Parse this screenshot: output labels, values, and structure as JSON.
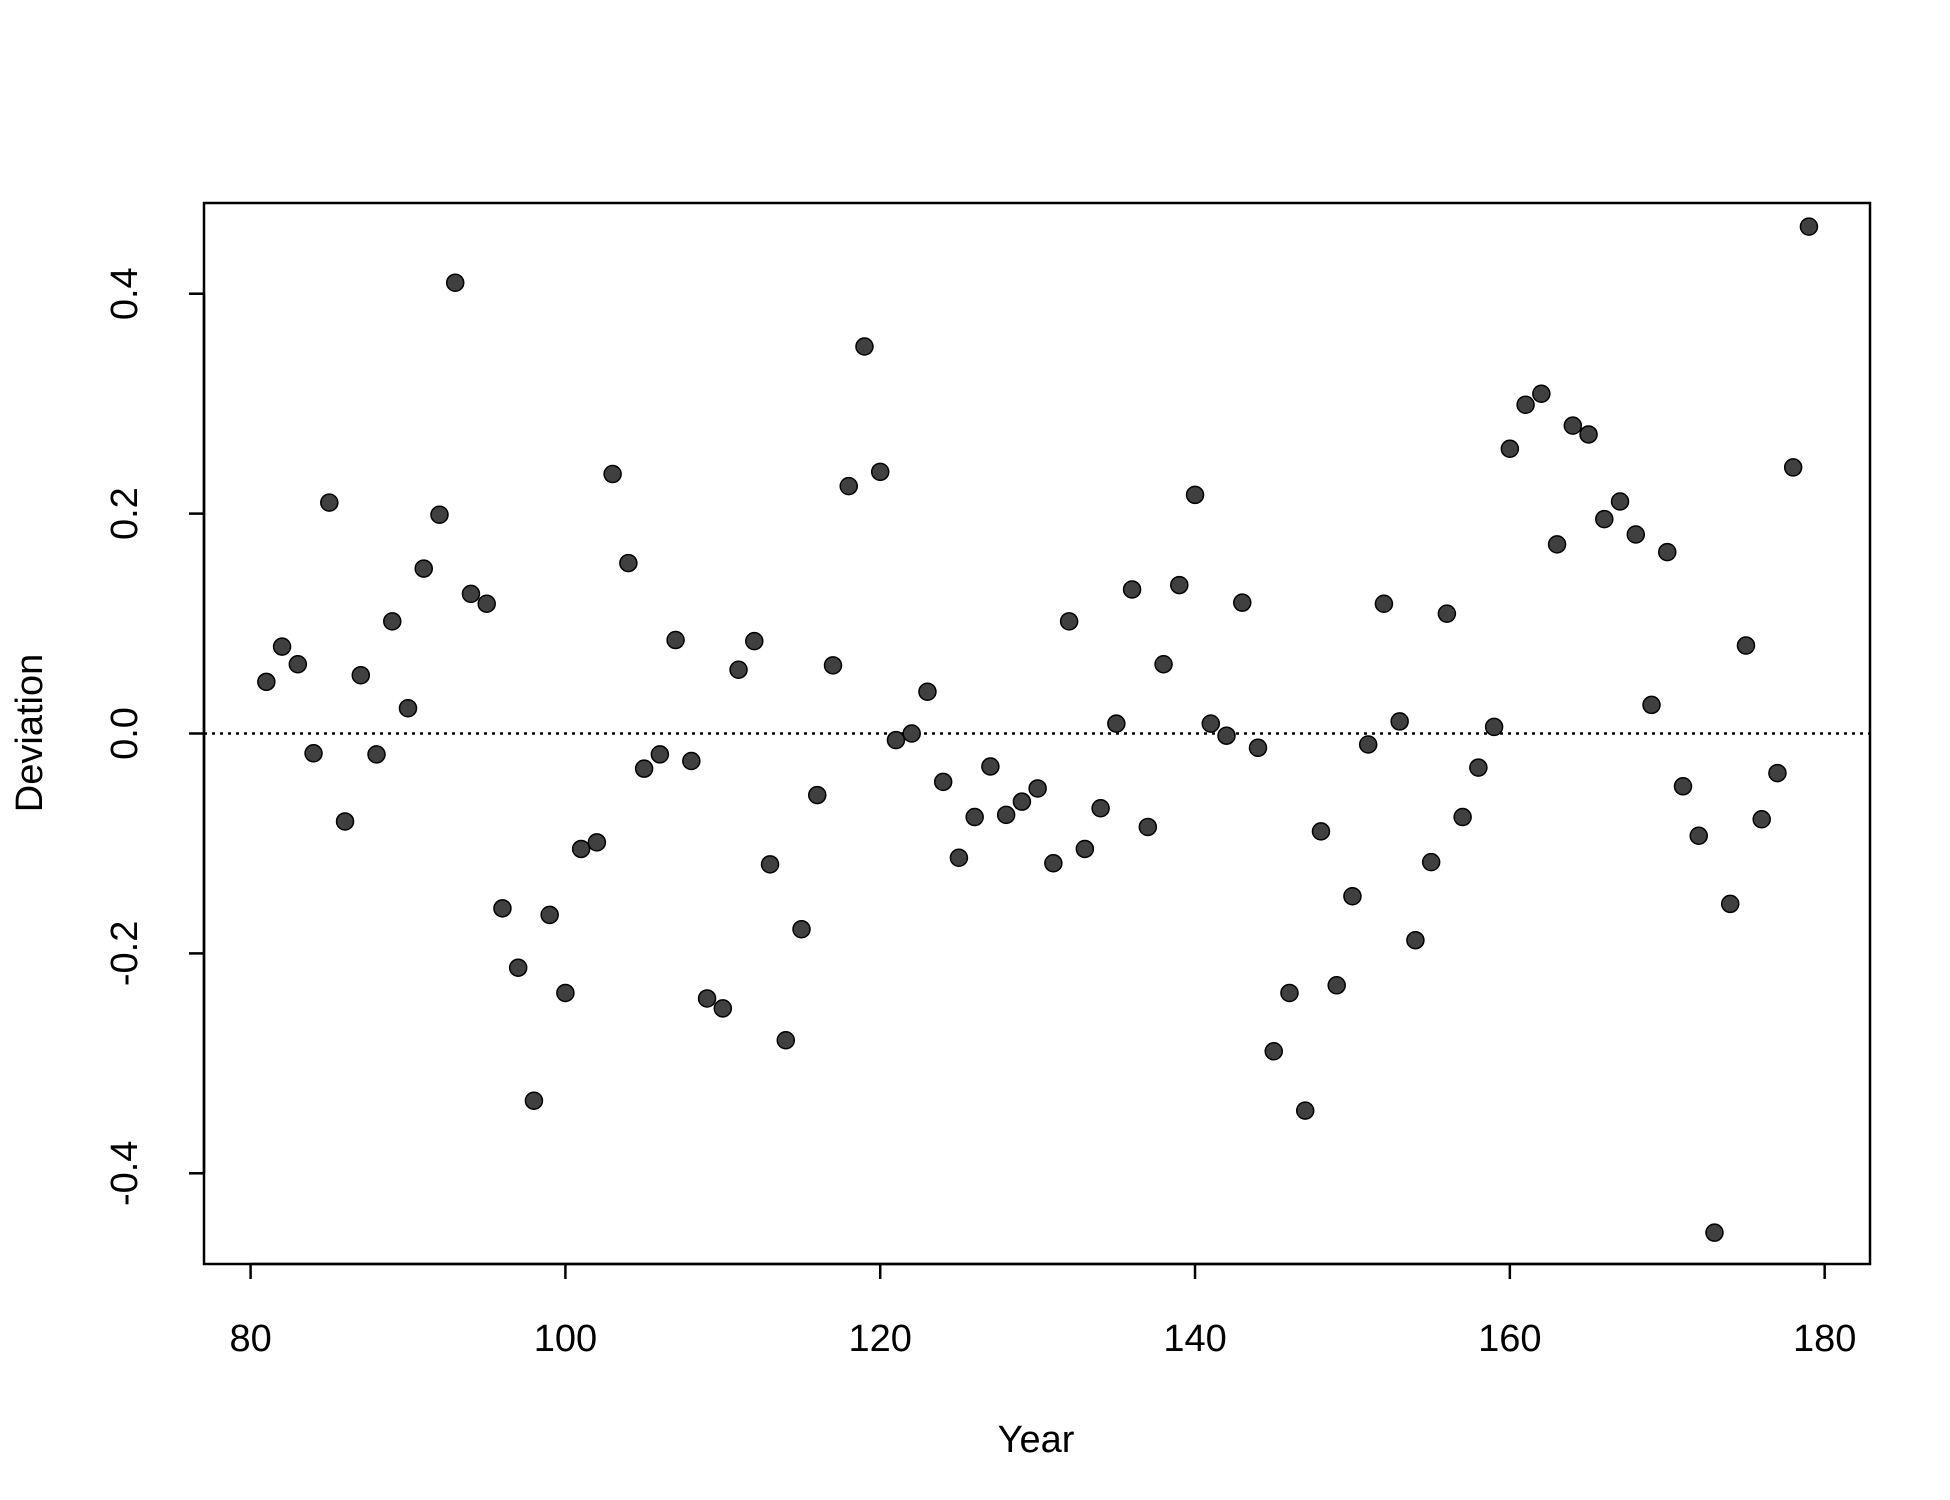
{
  "chart_data": {
    "type": "scatter",
    "x_label": "Year",
    "y_label": "Deviation",
    "x": [
      81,
      82,
      83,
      84,
      85,
      86,
      87,
      88,
      89,
      90,
      91,
      92,
      93,
      94,
      95,
      96,
      97,
      98,
      99,
      100,
      101,
      102,
      103,
      104,
      105,
      106,
      107,
      108,
      109,
      110,
      111,
      112,
      113,
      114,
      115,
      116,
      117,
      118,
      119,
      120,
      121,
      122,
      123,
      124,
      125,
      126,
      127,
      128,
      129,
      130,
      131,
      132,
      133,
      134,
      135,
      136,
      137,
      138,
      139,
      140,
      141,
      142,
      143,
      144,
      145,
      146,
      147,
      148,
      149,
      150,
      151,
      152,
      153,
      154,
      155,
      156,
      157,
      158,
      159,
      160,
      161,
      162,
      163,
      164,
      165,
      166,
      167,
      168,
      169,
      170,
      171,
      172,
      173,
      174,
      175,
      176,
      177,
      178,
      179
    ],
    "values": [
      0.047,
      0.079,
      0.063,
      -0.018,
      0.21,
      -0.08,
      0.053,
      -0.019,
      0.102,
      0.023,
      0.15,
      0.199,
      0.41,
      0.127,
      0.118,
      -0.159,
      -0.213,
      -0.334,
      -0.165,
      -0.236,
      -0.105,
      -0.099,
      0.236,
      0.155,
      -0.032,
      -0.019,
      0.085,
      -0.025,
      -0.241,
      -0.25,
      0.058,
      0.084,
      -0.119,
      -0.279,
      -0.178,
      -0.056,
      0.062,
      0.225,
      0.352,
      0.238,
      -0.006,
      0.0,
      0.038,
      -0.044,
      -0.113,
      -0.076,
      -0.03,
      -0.074,
      -0.062,
      -0.05,
      -0.118,
      0.102,
      -0.105,
      -0.068,
      0.009,
      0.131,
      -0.085,
      0.063,
      0.135,
      0.217,
      0.009,
      -0.002,
      0.119,
      -0.013,
      -0.289,
      -0.236,
      -0.343,
      -0.089,
      -0.229,
      -0.148,
      -0.01,
      0.118,
      0.011,
      -0.188,
      -0.117,
      0.109,
      -0.076,
      -0.031,
      0.006,
      0.259,
      0.299,
      0.309,
      0.172,
      0.28,
      0.272,
      0.195,
      0.211,
      0.181,
      0.026,
      0.165,
      -0.048,
      -0.093,
      -0.454,
      -0.155,
      0.08,
      -0.078,
      -0.036,
      0.242,
      0.461
    ],
    "color": "#404040",
    "hline": 0,
    "xlim": [
      77.04,
      182.88
    ],
    "xticks": [
      80,
      100,
      120,
      140,
      160,
      180
    ],
    "ylim": [
      -0.4825,
      0.4825
    ],
    "yticks": [
      -0.4,
      -0.2,
      {
        "value": 0,
        "label": "0.0"
      },
      0.2,
      0.4
    ]
  }
}
